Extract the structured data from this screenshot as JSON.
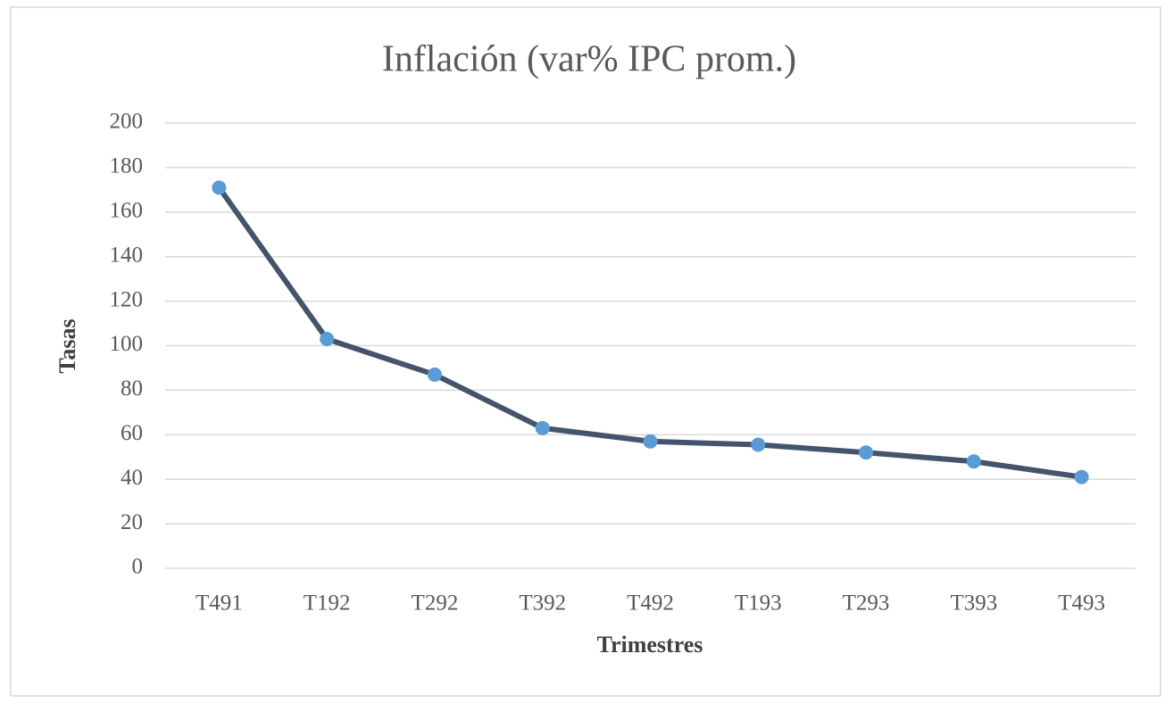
{
  "chart_data": {
    "type": "line",
    "title": "Inflación  (var% IPC prom.)",
    "x_label": "Trimestres",
    "y_label": "Tasas",
    "categories": [
      "T491",
      "T192",
      "T292",
      "T392",
      "T492",
      "T193",
      "T293",
      "T393",
      "T493"
    ],
    "series": [
      {
        "name": "Inflación",
        "line_color": "#44546a",
        "marker_color": "#5b9bd5",
        "values": [
          171,
          103,
          87,
          63,
          57,
          55.5,
          52,
          48,
          41
        ]
      }
    ],
    "ylim": [
      0,
      200
    ],
    "yticks": [
      0,
      20,
      40,
      60,
      80,
      100,
      120,
      140,
      160,
      180,
      200
    ],
    "grid": true
  }
}
